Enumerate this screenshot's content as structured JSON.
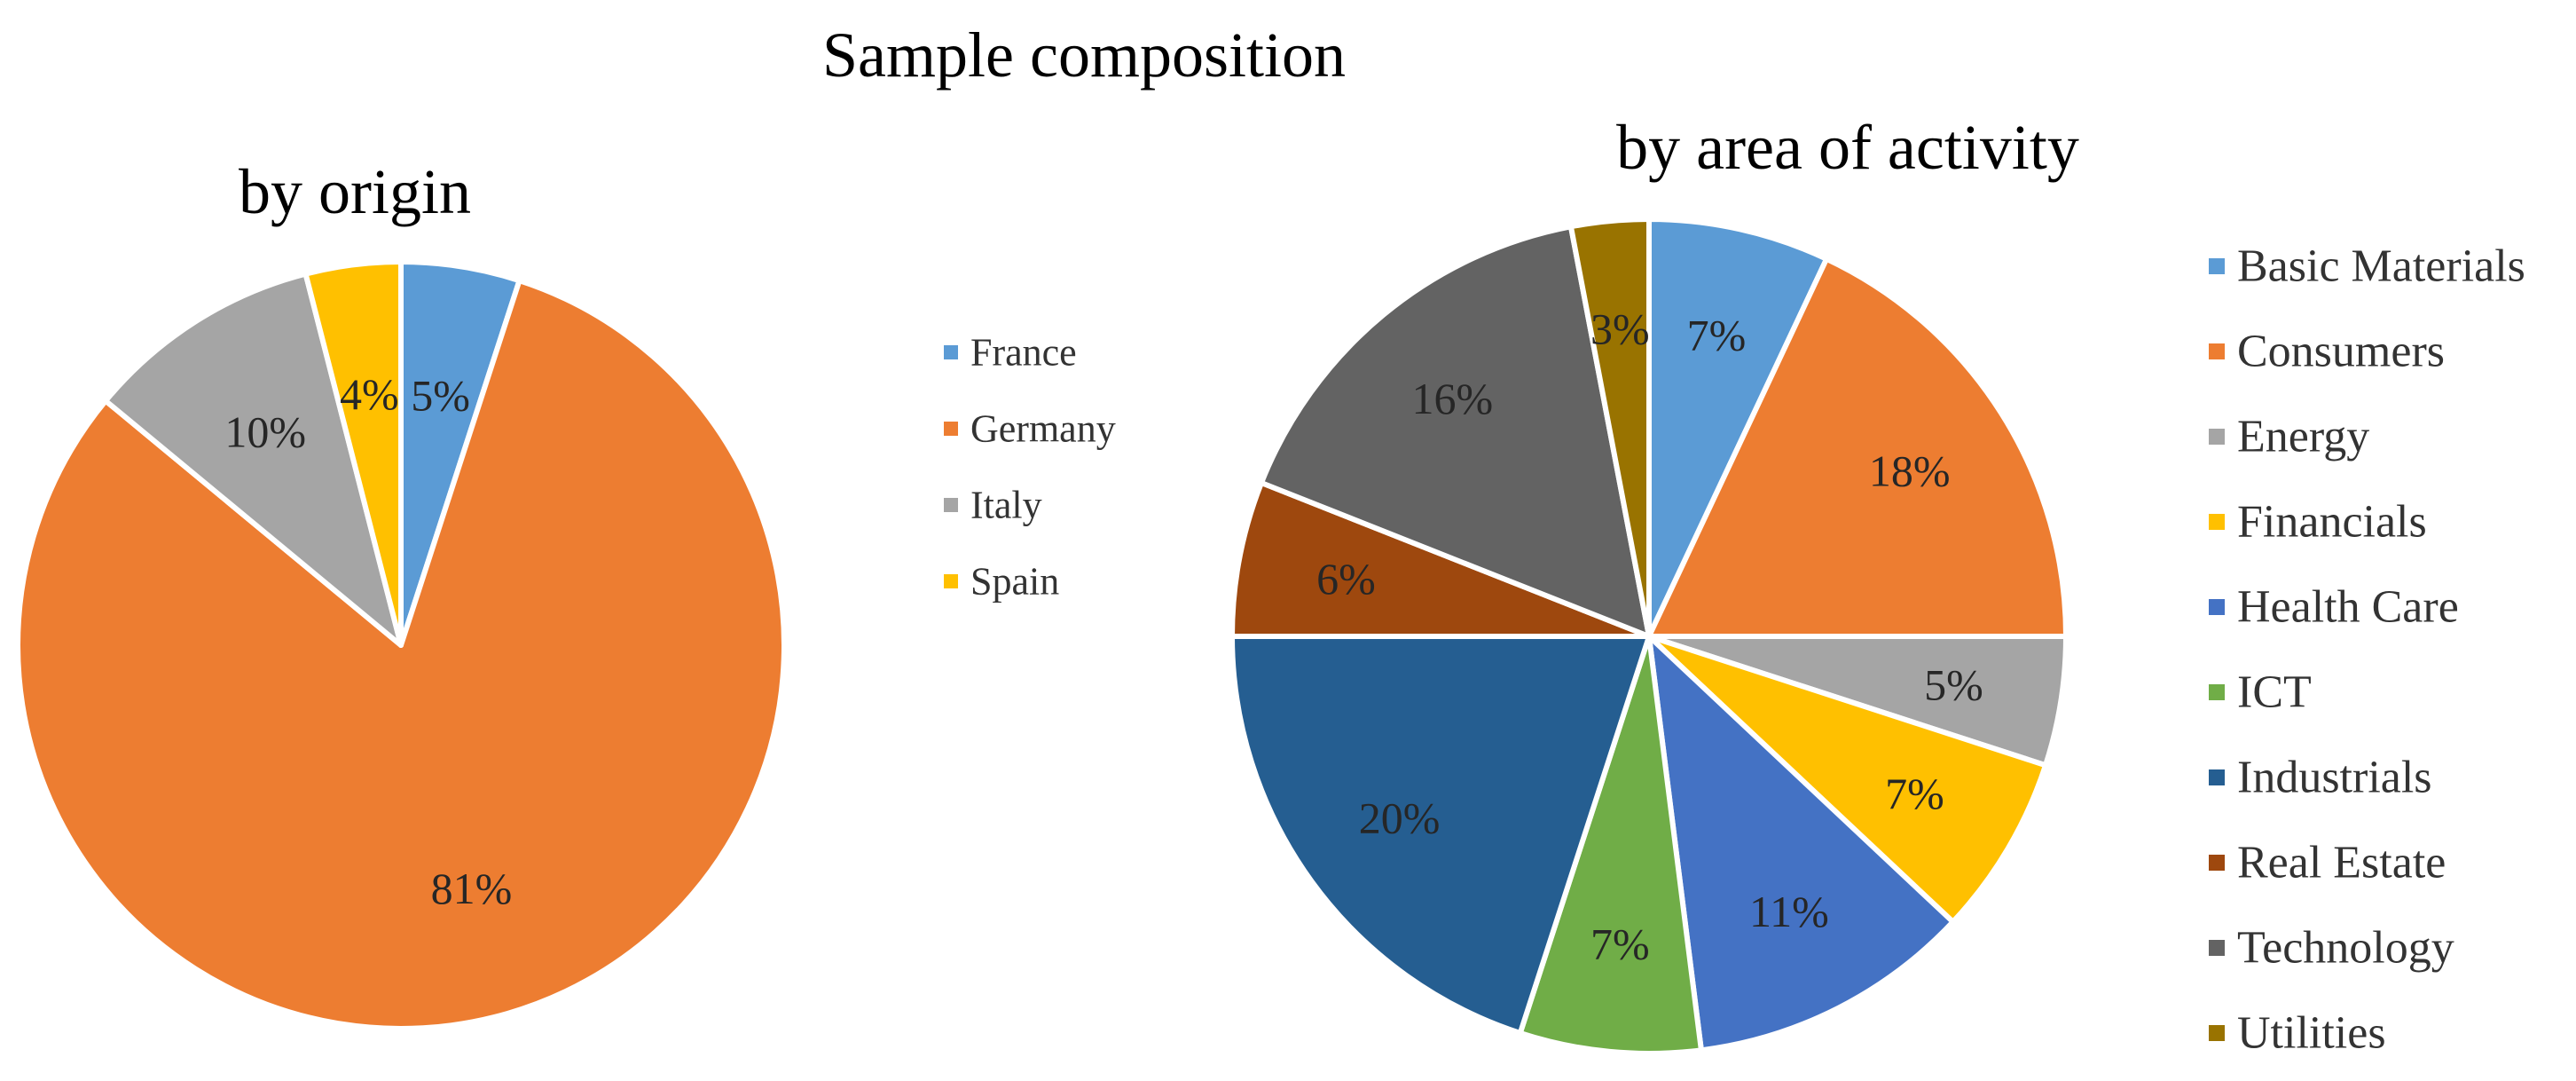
{
  "figure": {
    "title": "Sample composition"
  },
  "chart_data": [
    {
      "type": "pie",
      "title": "by origin",
      "categories": [
        "France",
        "Germany",
        "Italy",
        "Spain"
      ],
      "values": [
        5,
        81,
        10,
        4
      ],
      "labels": [
        "5%",
        "81%",
        "10%",
        "4%"
      ],
      "colors": [
        "#5B9BD5",
        "#ED7D31",
        "#A5A5A5",
        "#FFC000"
      ],
      "legend_position": "right"
    },
    {
      "type": "pie",
      "title": "by area of activity",
      "categories": [
        "Basic Materials",
        "Consumers",
        "Energy",
        "Financials",
        "Health Care",
        "ICT",
        "Industrials",
        "Real Estate",
        "Technology",
        "Utilities"
      ],
      "values": [
        7,
        18,
        5,
        7,
        11,
        7,
        20,
        6,
        16,
        3
      ],
      "labels": [
        "7%",
        "18%",
        "5%",
        "7%",
        "11%",
        "7%",
        "20%",
        "6%",
        "16%",
        "3%"
      ],
      "colors": [
        "#5B9BD5",
        "#ED7D31",
        "#A5A5A5",
        "#FFC000",
        "#4472C4",
        "#70AD47",
        "#255E91",
        "#9E480E",
        "#636363",
        "#997300"
      ],
      "legend_position": "right"
    }
  ]
}
